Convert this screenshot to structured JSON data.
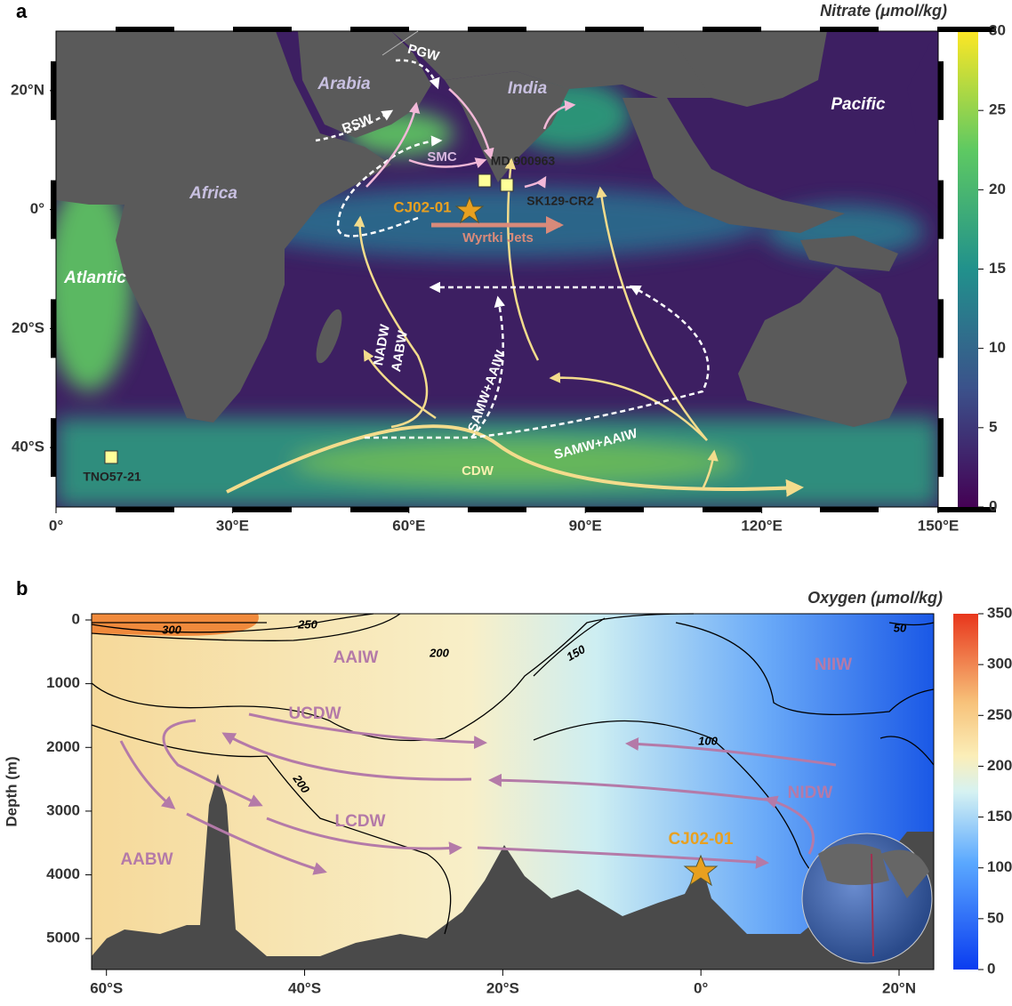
{
  "panel_a": {
    "label": "a",
    "colorbar": {
      "title": "Nitrate (μmol/kg)",
      "lim": [
        0,
        30
      ],
      "ticks": [
        0,
        5,
        10,
        15,
        20,
        25,
        30
      ]
    },
    "xlim": [
      0,
      150
    ],
    "xticks": [
      {
        "value": 0,
        "label": "0°"
      },
      {
        "value": 30,
        "label": "30°E"
      },
      {
        "value": 60,
        "label": "60°E"
      },
      {
        "value": 90,
        "label": "90°E"
      },
      {
        "value": 120,
        "label": "120°E"
      },
      {
        "value": 150,
        "label": "150°E"
      }
    ],
    "ylim": [
      -50,
      30
    ],
    "yticks": [
      {
        "value": 20,
        "label": "20°N"
      },
      {
        "value": 0,
        "label": "0°"
      },
      {
        "value": -20,
        "label": "20°S"
      },
      {
        "value": -40,
        "label": "40°S"
      }
    ],
    "regions": [
      "Arabia",
      "India",
      "Africa",
      "Pacific",
      "Atlantic"
    ],
    "water_masses": [
      "PGW",
      "RSW",
      "SMC",
      "Wyrtki Jets",
      "NADW",
      "AABW",
      "SAMW+AAIW",
      "SAMW+AAIW",
      "CDW"
    ],
    "sites": [
      "MD 900963",
      "SK129-CR2",
      "CJ02-01",
      "TNO57-21"
    ]
  },
  "panel_b": {
    "label": "b",
    "colorbar": {
      "title": "Oxygen (μmol/kg)",
      "lim": [
        0,
        350
      ],
      "ticks": [
        0,
        50,
        100,
        150,
        200,
        250,
        300,
        350
      ]
    },
    "ylabel": "Depth (m)",
    "xlim": [
      -61.5,
      23.5
    ],
    "xticks": [
      {
        "value": -60,
        "label": "60°S"
      },
      {
        "value": -40,
        "label": "40°S"
      },
      {
        "value": -20,
        "label": "20°S"
      },
      {
        "value": 0,
        "label": "0°"
      },
      {
        "value": 20,
        "label": "20°N"
      }
    ],
    "ylim": [
      0,
      5500
    ],
    "yticks": [
      0,
      1000,
      2000,
      3000,
      4000,
      5000
    ],
    "contour_labels": [
      300,
      250,
      200,
      150,
      50,
      100,
      200
    ],
    "water_masses": [
      "AAIW",
      "NIIW",
      "UCDW",
      "LCDW",
      "AABW",
      "NIDW"
    ],
    "site": "CJ02-01"
  }
}
